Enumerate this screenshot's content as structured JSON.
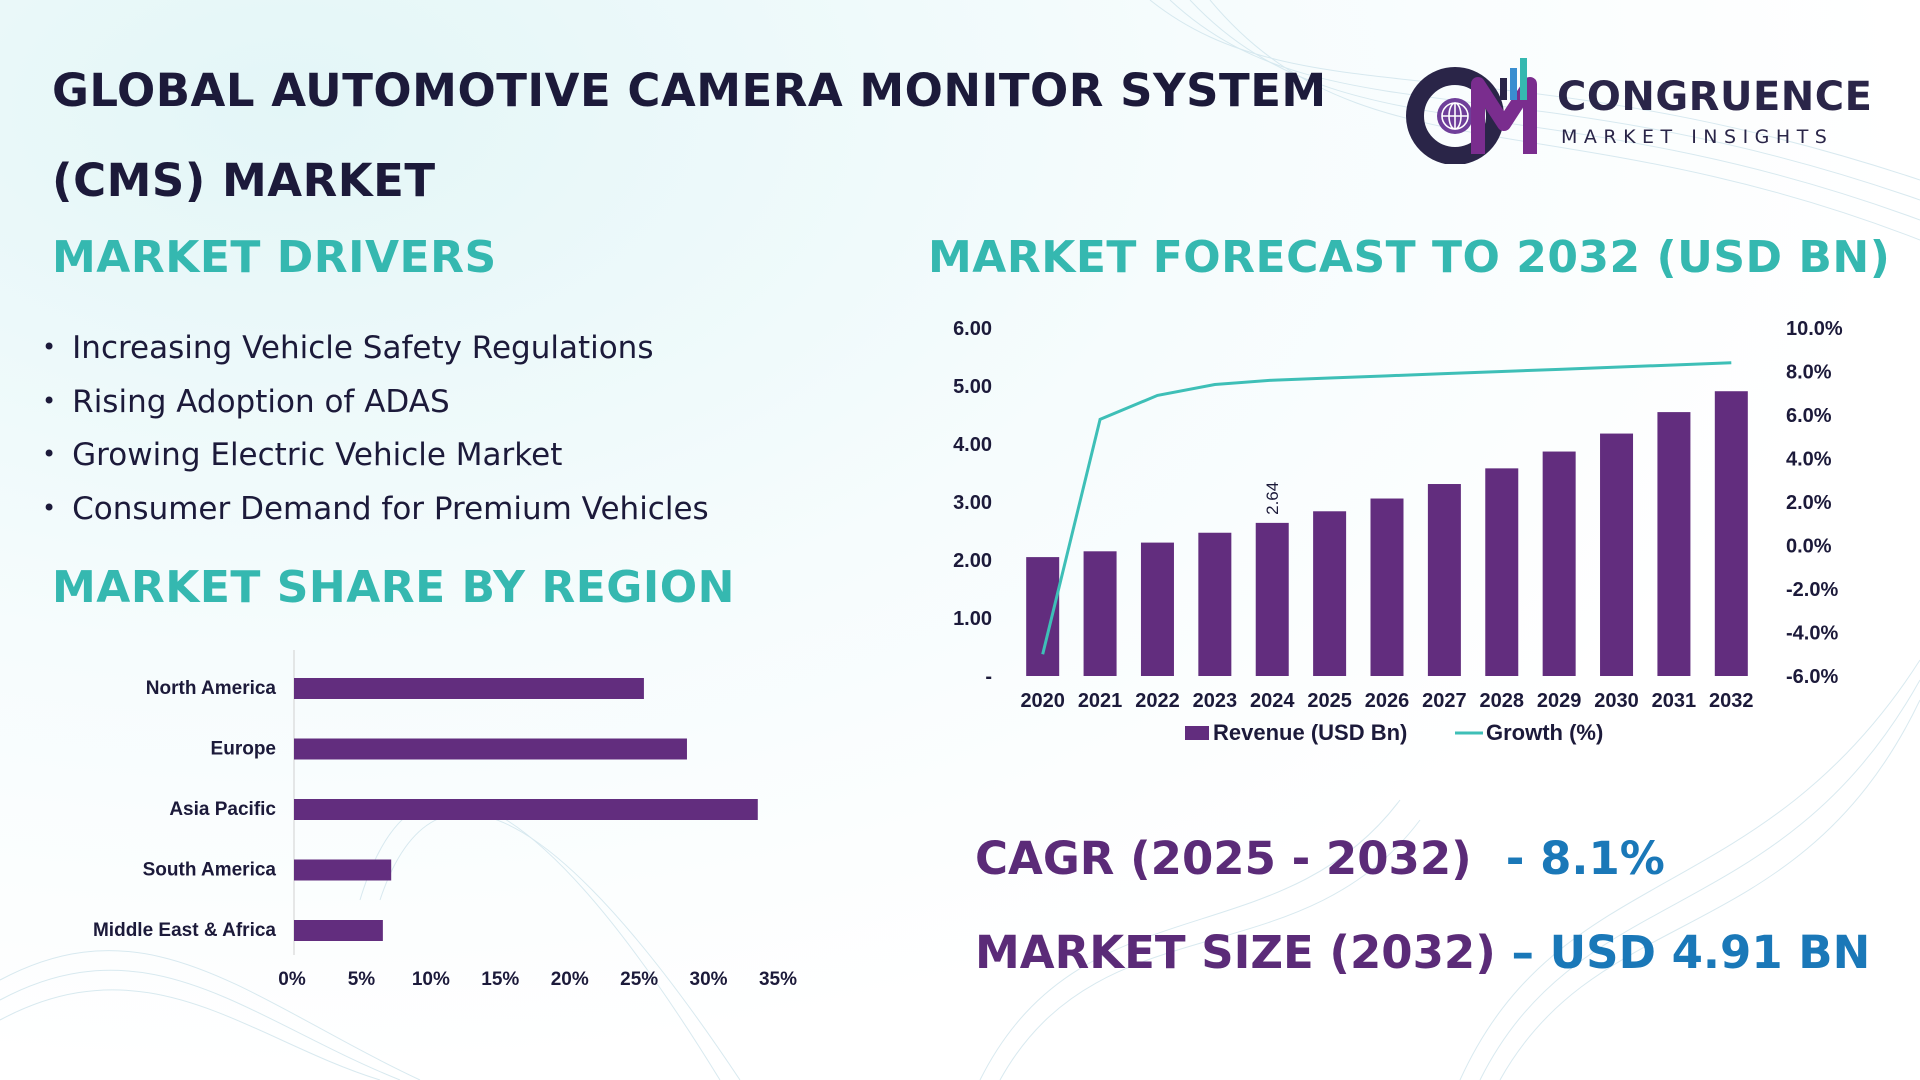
{
  "title": "GLOBAL AUTOMOTIVE CAMERA MONITOR SYSTEM (CMS) MARKET",
  "logo": {
    "initials": "CM",
    "name": "CONGRUENCE",
    "tagline": "MARKET INSIGHTS"
  },
  "drivers": {
    "heading": "MARKET DRIVERS",
    "items": [
      "Increasing Vehicle Safety Regulations",
      "Rising Adoption of ADAS",
      "Growing Electric Vehicle Market",
      "Consumer Demand for Premium Vehicles"
    ]
  },
  "region_share": {
    "heading": "MARKET SHARE BY REGION"
  },
  "forecast": {
    "heading": "MARKET FORECAST TO 2032 (USD BN)"
  },
  "kpis": {
    "cagr_label": "CAGR (2025 - 2032)",
    "cagr_value": "- 8.1%",
    "size_label": "MARKET SIZE (2032)",
    "size_value": "– USD 4.91 BN"
  },
  "colors": {
    "bar": "#622d7e",
    "line": "#3ebfb7",
    "heading": "#35b8b0",
    "title": "#1c1a3a",
    "kpi_label": "#5b2b78",
    "kpi_value": "#1a78b8"
  },
  "chart_data": [
    {
      "type": "bar",
      "orientation": "horizontal",
      "categories": [
        "North America",
        "Europe",
        "Asia Pacific",
        "South America",
        "Middle East & Africa"
      ],
      "values": [
        25.2,
        28.3,
        33.4,
        7.0,
        6.4
      ],
      "xticks": [
        "0%",
        "5%",
        "10%",
        "15%",
        "20%",
        "25%",
        "30%",
        "35%"
      ],
      "xlim": [
        0,
        35
      ],
      "grid": false
    },
    {
      "type": "bar",
      "categories": [
        "2020",
        "2021",
        "2022",
        "2023",
        "2024",
        "2025",
        "2026",
        "2027",
        "2028",
        "2029",
        "2030",
        "2031",
        "2032"
      ],
      "series": [
        {
          "name": "Revenue (USD Bn)",
          "type": "bar",
          "axis": "left",
          "values": [
            2.05,
            2.15,
            2.3,
            2.47,
            2.64,
            2.84,
            3.06,
            3.31,
            3.58,
            3.87,
            4.18,
            4.55,
            4.91
          ]
        },
        {
          "name": "Growth (%)",
          "type": "line",
          "axis": "right",
          "values": [
            -5.0,
            5.8,
            6.9,
            7.4,
            7.6,
            7.7,
            7.8,
            7.9,
            8.0,
            8.1,
            8.2,
            8.3,
            8.4
          ]
        }
      ],
      "data_labels": [
        {
          "category": "2024",
          "text": "2.64"
        }
      ],
      "left_ticks": [
        "-",
        "1.00",
        "2.00",
        "3.00",
        "4.00",
        "5.00",
        "6.00"
      ],
      "left_lim": [
        0,
        6
      ],
      "right_ticks": [
        "-6.0%",
        "-4.0%",
        "-2.0%",
        "0.0%",
        "2.0%",
        "4.0%",
        "6.0%",
        "8.0%",
        "10.0%"
      ],
      "right_lim": [
        -6,
        10
      ],
      "legend": "bottom",
      "grid": false
    }
  ]
}
